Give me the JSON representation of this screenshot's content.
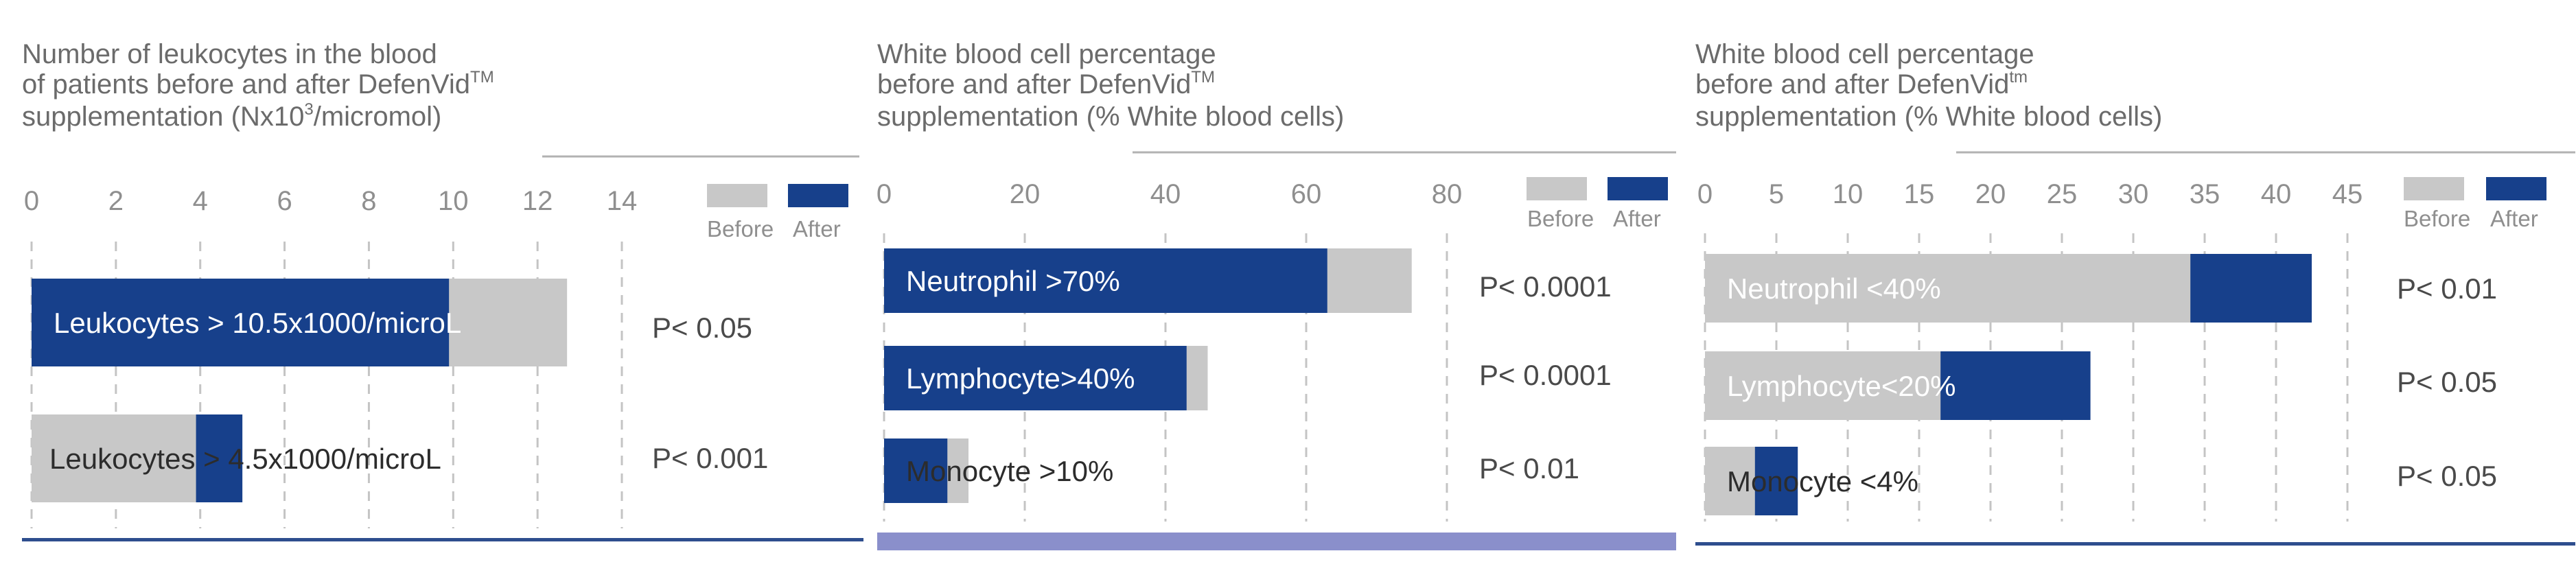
{
  "colors": {
    "before": "#c8c8c8",
    "after": "#17408b",
    "grid": "#c4c4c4",
    "rule": "#b2b2b2",
    "bottom_rule": "#2e4e8e",
    "bottom_band": "#8a8fcb"
  },
  "legend": {
    "before": "Before",
    "after": "After"
  },
  "chart_data": [
    {
      "type": "bar",
      "orientation": "horizontal",
      "title_lines": [
        "Number of leukocytes in the blood",
        "of patients before and after DefenVid",
        "supplementation (Nx10",
        "/micromol)"
      ],
      "title_marks": {
        "tm": "TM",
        "exp": "3"
      },
      "xlim": [
        0,
        14
      ],
      "ticks": [
        "0",
        "2",
        "4",
        "6",
        "8",
        "10",
        "12",
        "14"
      ],
      "categories": [
        "Leukocytes > 10.5x1000/microL",
        "Leukocytes > 4.5x1000/microL"
      ],
      "series": [
        {
          "name": "Before",
          "values": [
            12.7,
            3.9
          ]
        },
        {
          "name": "After",
          "values": [
            9.9,
            5.0
          ]
        }
      ],
      "p_values": [
        "P< 0.05",
        "P< 0.001"
      ]
    },
    {
      "type": "bar",
      "orientation": "horizontal",
      "title_lines": [
        "White blood cell percentage",
        "before and after DefenVid",
        "supplementation (% White blood cells)"
      ],
      "title_marks": {
        "tm": "TM"
      },
      "xlim": [
        0,
        80
      ],
      "ticks": [
        "0",
        "20",
        "40",
        "60",
        "80"
      ],
      "categories": [
        "Neutrophil >70%",
        "Lymphocyte>40%",
        "Monocyte >10%"
      ],
      "series": [
        {
          "name": "Before",
          "values": [
            75,
            46,
            12
          ]
        },
        {
          "name": "After",
          "values": [
            63,
            43,
            9
          ]
        }
      ],
      "p_values": [
        "P< 0.0001",
        "P< 0.0001",
        "P< 0.01"
      ]
    },
    {
      "type": "bar",
      "orientation": "horizontal",
      "title_lines": [
        "White blood cell percentage",
        "before and after DefenVid",
        "supplementation (% White blood cells)"
      ],
      "title_marks": {
        "tm": "tm"
      },
      "xlim": [
        0,
        45
      ],
      "ticks": [
        "0",
        "5",
        "10",
        "15",
        "20",
        "25",
        "30",
        "35",
        "40",
        "45"
      ],
      "categories": [
        "Neutrophil <40%",
        "Lymphocyte<20%",
        "Monocyte <4%"
      ],
      "series": [
        {
          "name": "Before",
          "values": [
            34,
            16.5,
            3.5
          ]
        },
        {
          "name": "After",
          "values": [
            42.5,
            27,
            6.5
          ]
        }
      ],
      "p_values": [
        "P< 0.01",
        "P< 0.05",
        "P< 0.05"
      ]
    }
  ]
}
